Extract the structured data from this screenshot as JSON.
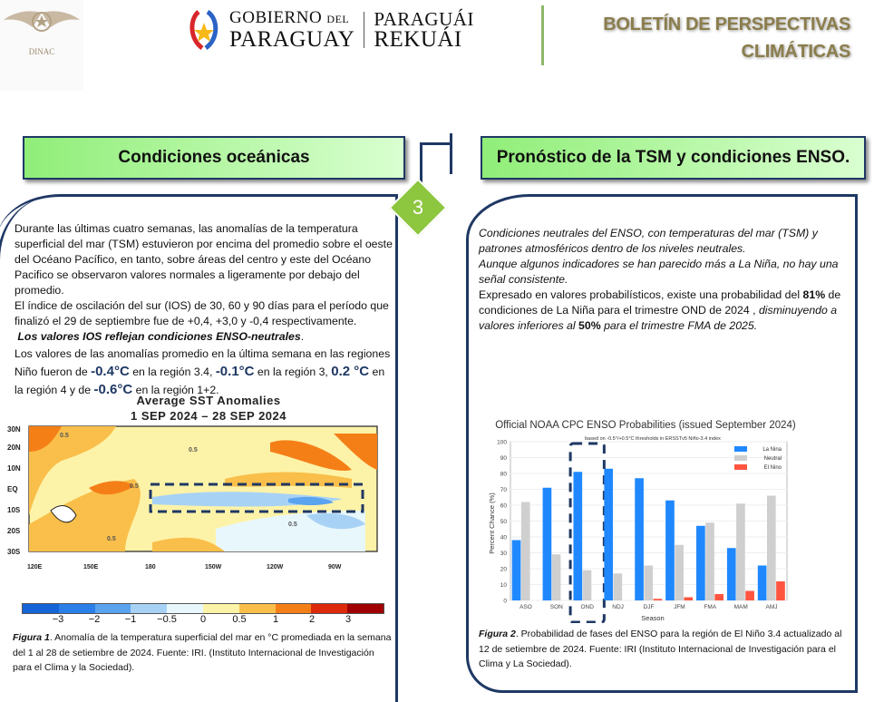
{
  "header": {
    "dinac_logo": "DINAC",
    "gob_line1": "GOBIERNO",
    "gob_del": "DEL",
    "gob_line2": "PARAGUAY",
    "rek_line1": "PARAGUÁI",
    "rek_line2": "REKUÁI",
    "title_line1": "BOLETÍN DE PERSPECTIVAS",
    "title_line2": "CLIMÁTICAS"
  },
  "page_number": "3",
  "left": {
    "title": "Condiciones oceánicas",
    "p1": "Durante las últimas cuatro semanas, las anomalías de la  temperatura superficial del mar (TSM) estuvieron por encima del promedio sobre el oeste del Océano Pacífico, en tanto, sobre áreas del centro y este del Océano Pacifico se observaron valores normales a ligeramente por debajo del promedio.",
    "p2": "El índice de oscilación del sur (IOS) de 30, 60 y 90 días para el período que finalizó el 29 de septiembre fue de +0,4, +3,0 y -0,4 respectivamente.",
    "p3": "Los valores IOS reflejan condiciones ENSO-neutrales",
    "p3_end": ".",
    "p4a": "Los valores de las anomalías promedio en la última semana en las regiones Niño fueron de ",
    "v34": "-0.4°C",
    "p4b": " en la región 3.4, ",
    "v3": "-0.1°C",
    "p4c": " en la región 3, ",
    "v4": "0.2 °C",
    "p4d": " en la región 4 y de ",
    "v12": "-0.6°C",
    "p4e": " en la región 1+2.",
    "map": {
      "title1": "Average SST Anomalies",
      "title2": "1 SEP 2024 – 28 SEP 2024",
      "lat_labels": [
        "30N",
        "20N",
        "10N",
        "EQ",
        "10S",
        "20S",
        "30S"
      ],
      "lon_labels": [
        "120E",
        "150E",
        "180",
        "150W",
        "120W",
        "90W"
      ],
      "contour_label": "0.5",
      "colorbar_ticks": [
        "−3",
        "−2",
        "−1",
        "−0.5",
        "0",
        "0.5",
        "1",
        "2",
        "3"
      ],
      "colorbar_colors": [
        "#1565d8",
        "#2b7fe8",
        "#5aa3ef",
        "#a8d2f5",
        "#e8f7fb",
        "#fdf3a8",
        "#f9bf4a",
        "#f57f17",
        "#dd2a0a",
        "#a10000"
      ]
    },
    "caption_label": "Figura 1",
    "caption": ". Anomalía de la temperatura superficial del mar en °C promediada en la semana del 1 al 28 de setiembre de 2024. Fuente: IRI. (Instituto Internacional de Investigación para el Clima y la Sociedad)."
  },
  "right": {
    "title": "Pronóstico de la TSM y condiciones ENSO.",
    "p1": "Condiciones neutrales del ENSO, con temperaturas del mar (TSM) y patrones atmosféricos dentro de los niveles neutrales.",
    "p2": "Aunque algunos indicadores se han parecido más a La Niña, no hay una señal consistente.",
    "p3a": "Expresado en valores probabilísticos, existe una probabilidad del ",
    "p3b": "81%",
    "p3c": " de condiciones de La Niña para el trimestre OND de 2024 , ",
    "p3d": "disminuyendo a valores inferiores al ",
    "p3e": "50%",
    "p3f": " para el trimestre FMA de 2025.",
    "caption_label": "Figura 2",
    "caption": ". Probabilidad de fases del ENSO para la región de El Niño 3.4 actualizado al 12 de setiembre de 2024. Fuente: IRI (Instituto Internacional de Investigación para el Clima y La Sociedad)."
  },
  "chart_data": {
    "type": "bar",
    "title": "Official NOAA CPC ENSO Probabilities (issued September 2024)",
    "subtitle": "based on -0.5°/+0.5°C thresholds in ERSSTv5 Niño-3.4 index",
    "xlabel": "Season",
    "ylabel": "Percent Chance (%)",
    "ylim": [
      0,
      100
    ],
    "yticks": [
      0,
      10,
      20,
      30,
      40,
      50,
      60,
      70,
      80,
      90,
      100
    ],
    "categories": [
      "ASO",
      "SON",
      "OND",
      "NDJ",
      "DJF",
      "JFM",
      "FMA",
      "MAM",
      "AMJ"
    ],
    "legend_position": "top-right",
    "grid": true,
    "highlighted_category": "OND",
    "series": [
      {
        "name": "La Nina",
        "color": "#1f88ff",
        "values": [
          38,
          71,
          81,
          83,
          77,
          63,
          47,
          33,
          22
        ]
      },
      {
        "name": "Neutral",
        "color": "#cfcfcf",
        "values": [
          62,
          29,
          19,
          17,
          22,
          35,
          49,
          61,
          66
        ]
      },
      {
        "name": "El Nino",
        "color": "#ff5540",
        "values": [
          0,
          0,
          0,
          0,
          1,
          2,
          4,
          6,
          12
        ]
      }
    ]
  }
}
